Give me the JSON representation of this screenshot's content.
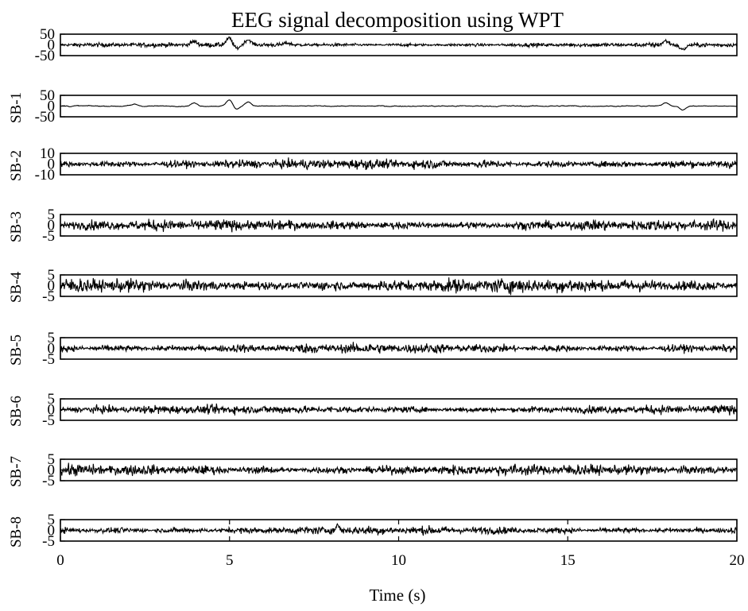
{
  "chart_data": {
    "type": "line",
    "title": "EEG signal decomposition using WPT",
    "xlabel": "Time (s)",
    "xlim": [
      0,
      20
    ],
    "xticks": [
      "0",
      "5",
      "10",
      "15",
      "20"
    ],
    "grid": false,
    "panels": [
      {
        "ylabel": "",
        "ylim": [
          -50,
          50
        ],
        "yticks": [
          "50",
          "0",
          "-50"
        ],
        "amplitude": 8,
        "events": [
          {
            "t": 3.95,
            "v": 16
          },
          {
            "t": 5.0,
            "v": 32
          },
          {
            "t": 5.2,
            "v": -18
          },
          {
            "t": 5.55,
            "v": 24
          },
          {
            "t": 6.7,
            "v": 9
          },
          {
            "t": 17.9,
            "v": 18
          },
          {
            "t": 18.4,
            "v": -22
          }
        ]
      },
      {
        "ylabel": "SB-1",
        "ylim": [
          -50,
          50
        ],
        "yticks": [
          "50",
          "0",
          "-50"
        ],
        "amplitude": 2.5,
        "events": [
          {
            "t": 2.2,
            "v": 8
          },
          {
            "t": 3.95,
            "v": 14
          },
          {
            "t": 5.0,
            "v": 30
          },
          {
            "t": 5.2,
            "v": -16
          },
          {
            "t": 5.55,
            "v": 20
          },
          {
            "t": 17.9,
            "v": 16
          },
          {
            "t": 18.4,
            "v": -18
          }
        ]
      },
      {
        "ylabel": "SB-2",
        "ylim": [
          -10,
          10
        ],
        "yticks": [
          "10",
          "0",
          "-10"
        ],
        "amplitude": 3.5,
        "events": []
      },
      {
        "ylabel": "SB-3",
        "ylim": [
          -5,
          5
        ],
        "yticks": [
          "5",
          "0",
          "-5"
        ],
        "amplitude": 2.0,
        "events": []
      },
      {
        "ylabel": "SB-4",
        "ylim": [
          -5,
          5
        ],
        "yticks": [
          "5",
          "0",
          "-5"
        ],
        "amplitude": 2.6,
        "events": []
      },
      {
        "ylabel": "SB-5",
        "ylim": [
          -5,
          5
        ],
        "yticks": [
          "5",
          "0",
          "-5"
        ],
        "amplitude": 1.8,
        "events": []
      },
      {
        "ylabel": "SB-6",
        "ylim": [
          -5,
          5
        ],
        "yticks": [
          "5",
          "0",
          "-5"
        ],
        "amplitude": 1.6,
        "events": []
      },
      {
        "ylabel": "SB-7",
        "ylim": [
          -5,
          5
        ],
        "yticks": [
          "5",
          "0",
          "-5"
        ],
        "amplitude": 2.0,
        "events": []
      },
      {
        "ylabel": "SB-8",
        "ylim": [
          -5,
          5
        ],
        "yticks": [
          "5",
          "0",
          "-5"
        ],
        "amplitude": 1.5,
        "events": [
          {
            "t": 8.2,
            "v": 2.5
          }
        ]
      }
    ]
  }
}
